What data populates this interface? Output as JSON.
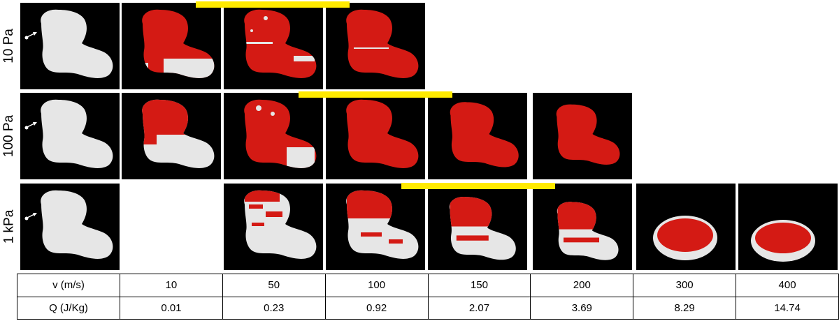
{
  "rows": [
    {
      "label": "10 Pa",
      "panels": [
        "intact",
        "red-lower-white",
        "red-mostly",
        "red-full"
      ]
    },
    {
      "label": "100 Pa",
      "panels": [
        "intact",
        "red-upper",
        "red-mostly",
        "red-full",
        "red-full",
        "red-full"
      ]
    },
    {
      "label": "1 kPa",
      "panels": [
        "intact",
        "red-speckled",
        "red-speckled",
        "red-speckled",
        "red-speckled",
        "red-speckled",
        "red-speckled"
      ]
    }
  ],
  "colors": {
    "background": "#000000",
    "intact_body": "#e6e6e6",
    "damage": "#d41a14",
    "marker_bar": "#ffea00"
  },
  "icons": [
    "impact-arrow-icon"
  ],
  "table": {
    "row_v": {
      "header": "v (m/s)",
      "values": [
        "10",
        "50",
        "100",
        "150",
        "200",
        "300",
        "400"
      ]
    },
    "row_q": {
      "header": "Q (J/Kg)",
      "values": [
        "0.01",
        "0.23",
        "0.92",
        "2.07",
        "3.69",
        "8.29",
        "14.74"
      ]
    }
  }
}
